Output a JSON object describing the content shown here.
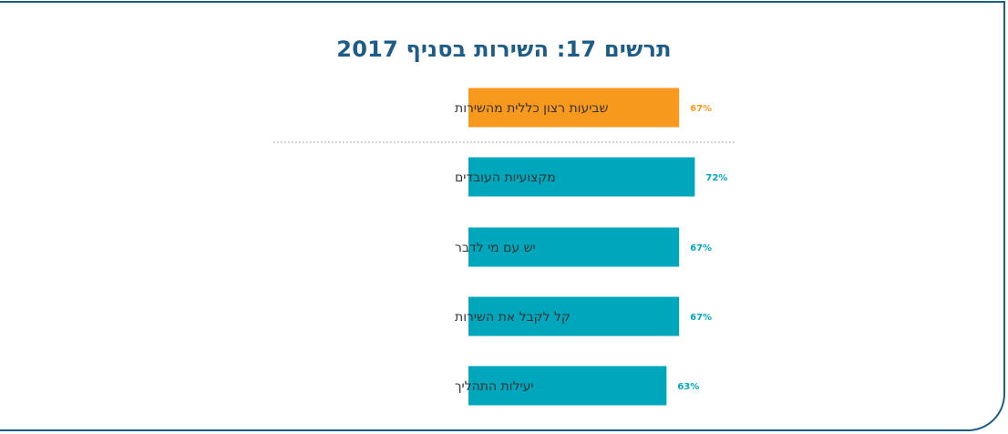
{
  "title": "תרשים 17: השירות בסניף 2017",
  "colors": {
    "frame": "#1d5c86",
    "title": "#1d5c86",
    "highlight": "#f7991c",
    "bar": "#00a6bc",
    "separator": "#8c8c8c"
  },
  "chart_data": {
    "type": "bar",
    "orientation": "horizontal",
    "title": "תרשים 17: השירות בסניף 2017",
    "categories": [
      "שביעות רצון כללית מהשירות",
      "מקצועיות העובדים",
      "יש עם מי לדבר",
      "קל לקבל את השירות",
      "יעילות התהליך"
    ],
    "values": [
      67,
      72,
      67,
      67,
      63
    ],
    "value_labels": [
      "67%",
      "72%",
      "67%",
      "67%",
      "63%"
    ],
    "unit": "%",
    "highlight_index": 0,
    "xlim": [
      0,
      100
    ],
    "grid": false,
    "legend": "none"
  }
}
